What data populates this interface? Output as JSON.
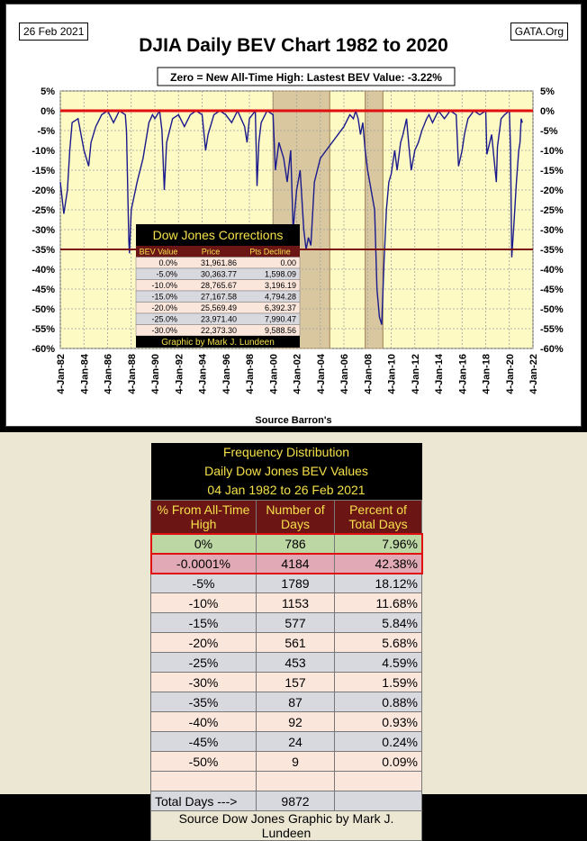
{
  "header": {
    "date": "26 Feb 2021",
    "brand": "GATA.Org",
    "title": "DJIA Daily BEV Chart 1982 to 2020",
    "annotation": "Zero = New All-Time High: Lastest BEV Value: -3.22%",
    "source": "Source Barron's"
  },
  "chart_data": {
    "type": "line",
    "title": "DJIA Daily BEV Chart 1982 to 2020",
    "xlabel": "Source Barron's",
    "ylabel": "",
    "xlim": [
      1982,
      2022
    ],
    "ylim": [
      -60,
      5
    ],
    "x_tick_labels": [
      "4-Jan-82",
      "4-Jan-84",
      "4-Jan-86",
      "4-Jan-88",
      "4-Jan-90",
      "4-Jan-92",
      "4-Jan-94",
      "4-Jan-96",
      "4-Jan-98",
      "4-Jan-00",
      "4-Jan-02",
      "4-Jan-04",
      "4-Jan-06",
      "4-Jan-08",
      "4-Jan-10",
      "4-Jan-12",
      "4-Jan-14",
      "4-Jan-16",
      "4-Jan-18",
      "4-Jan-20",
      "4-Jan-22"
    ],
    "y_ticks": [
      5,
      0,
      -5,
      -10,
      -15,
      -20,
      -25,
      -30,
      -35,
      -40,
      -45,
      -50,
      -55,
      -60
    ],
    "y_tick_labels": [
      "5%",
      "0%",
      "-5%",
      "-10%",
      "-15%",
      "-20%",
      "-25%",
      "-30%",
      "-35%",
      "-40%",
      "-45%",
      "-50%",
      "-55%",
      "-60%"
    ],
    "reference_lines": [
      0,
      -35
    ],
    "shaded_ranges": [
      [
        2000.0,
        2004.8
      ],
      [
        2007.8,
        2009.3
      ]
    ],
    "series": [
      {
        "color": "#1a1a8c",
        "x": [
          1982.0,
          1982.3,
          1982.6,
          1982.8,
          1983.0,
          1983.5,
          1984.0,
          1984.4,
          1984.6,
          1985.0,
          1985.5,
          1986.0,
          1986.5,
          1987.0,
          1987.5,
          1987.6,
          1987.8,
          1987.85,
          1988.0,
          1988.5,
          1989.0,
          1989.5,
          1989.8,
          1990.0,
          1990.4,
          1990.6,
          1990.8,
          1991.0,
          1991.5,
          1992.0,
          1992.5,
          1993.0,
          1993.5,
          1994.0,
          1994.3,
          1994.5,
          1995.0,
          1995.5,
          1996.0,
          1996.5,
          1997.0,
          1997.3,
          1997.6,
          1997.8,
          1998.0,
          1998.5,
          1998.65,
          1998.8,
          1999.0,
          1999.5,
          2000.0,
          2000.2,
          2000.5,
          2000.9,
          2001.2,
          2001.5,
          2001.7,
          2002.0,
          2002.3,
          2002.6,
          2002.8,
          2003.0,
          2003.2,
          2003.5,
          2004.0,
          2004.5,
          2005.0,
          2005.5,
          2006.0,
          2006.5,
          2006.8,
          2007.0,
          2007.2,
          2007.4,
          2007.6,
          2007.8,
          2008.0,
          2008.3,
          2008.6,
          2008.8,
          2009.0,
          2009.2,
          2009.4,
          2009.6,
          2009.8,
          2010.0,
          2010.3,
          2010.5,
          2010.8,
          2011.0,
          2011.3,
          2011.5,
          2011.7,
          2012.0,
          2012.3,
          2012.6,
          2013.0,
          2013.2,
          2013.5,
          2014.0,
          2014.5,
          2015.0,
          2015.5,
          2015.7,
          2016.0,
          2016.2,
          2016.5,
          2017.0,
          2017.5,
          2018.0,
          2018.1,
          2018.5,
          2018.9,
          2019.0,
          2019.3,
          2019.6,
          2020.0,
          2020.1,
          2020.2,
          2020.4,
          2020.6,
          2020.8,
          2020.9,
          2021.0,
          2021.1
        ],
        "y": [
          -18,
          -26,
          -20,
          -10,
          -3,
          -2,
          -10,
          -14,
          -8,
          -4,
          -1,
          0,
          -3,
          0,
          -1,
          -5,
          -33,
          -36,
          -25,
          -18,
          -12,
          -3,
          -1,
          -2,
          0,
          -5,
          -20,
          -8,
          -2,
          -1,
          -4,
          -1,
          0,
          -1,
          -10,
          -6,
          -1,
          0,
          -1,
          -3,
          0,
          -2,
          -4,
          -8,
          -2,
          0,
          -19,
          -8,
          -3,
          0,
          -1,
          -15,
          -8,
          -12,
          -18,
          -10,
          -30,
          -20,
          -15,
          -30,
          -35,
          -32,
          -34,
          -18,
          -12,
          -10,
          -8,
          -6,
          -4,
          -1,
          -2,
          0,
          -2,
          -6,
          -3,
          -10,
          -15,
          -20,
          -25,
          -45,
          -52,
          -54,
          -38,
          -25,
          -18,
          -16,
          -10,
          -15,
          -8,
          -6,
          -2,
          -9,
          -15,
          -10,
          -8,
          -5,
          -2,
          -1,
          -3,
          0,
          -2,
          0,
          -1,
          -14,
          -10,
          -6,
          -2,
          0,
          -1,
          0,
          -11,
          -6,
          -18,
          -9,
          -2,
          -1,
          0,
          -10,
          -37,
          -28,
          -18,
          -10,
          -8,
          -2,
          -3
        ]
      }
    ],
    "inset_table": {
      "title": "Dow Jones Corrections",
      "columns": [
        "BEV Value",
        "Price",
        "Pts Decline"
      ],
      "rows": [
        [
          "0.0%",
          "31,961.86",
          "0.00"
        ],
        [
          "-5.0%",
          "30,363.77",
          "1,598.09"
        ],
        [
          "-10.0%",
          "28,765.67",
          "3,196.19"
        ],
        [
          "-15.0%",
          "27,167.58",
          "4,794.28"
        ],
        [
          "-20.0%",
          "25,569.49",
          "6,392.37"
        ],
        [
          "-25.0%",
          "23,971.40",
          "7,990.47"
        ],
        [
          "-30.0%",
          "22,373.30",
          "9,588.56"
        ]
      ],
      "credit": "Graphic by Mark J. Lundeen"
    }
  },
  "table": {
    "title_lines": [
      "Frequency Distribution",
      "Daily Dow Jones BEV Values",
      "04 Jan 1982 to 26 Feb 2021"
    ],
    "columns": [
      "% From All-Time High",
      "Number of Days",
      "Percent of Total Days"
    ],
    "rows": [
      [
        "0%",
        "786",
        "7.96%"
      ],
      [
        "-0.0001%",
        "4184",
        "42.38%"
      ],
      [
        "-5%",
        "1789",
        "18.12%"
      ],
      [
        "-10%",
        "1153",
        "11.68%"
      ],
      [
        "-15%",
        "577",
        "5.84%"
      ],
      [
        "-20%",
        "561",
        "5.68%"
      ],
      [
        "-25%",
        "453",
        "4.59%"
      ],
      [
        "-30%",
        "157",
        "1.59%"
      ],
      [
        "-35%",
        "87",
        "0.88%"
      ],
      [
        "-40%",
        "92",
        "0.93%"
      ],
      [
        "-45%",
        "24",
        "0.24%"
      ],
      [
        "-50%",
        "9",
        "0.09%"
      ]
    ],
    "total_label": "Total Days --->",
    "total_value": "9872",
    "footer": "Source Dow Jones   Graphic by Mark J. Lundeen"
  }
}
